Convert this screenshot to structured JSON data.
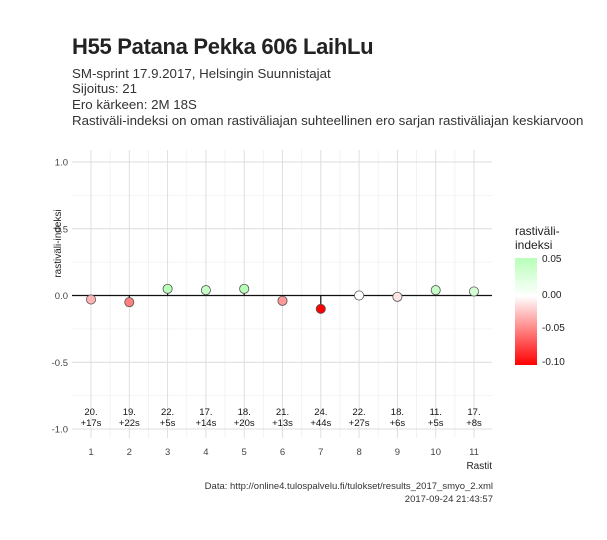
{
  "title": "H55 Patana Pekka 606 LaihLu",
  "subtitle_lines": [
    "SM-sprint 17.9.2017, Helsingin Suunnistajat",
    "Sijoitus: 21",
    "Ero kärkeen: 2M 18S",
    "Rastiväli-indeksi on oman rastiväliajan suhteellinen ero sarjan rastiväliajan keskiarvoon"
  ],
  "caption_lines": [
    "Data: http://online4.tulospalvelu.fi/tulokset/results_2017_smyo_2.xml",
    "2017-09-24 21:43:57"
  ],
  "legend": {
    "title_lines": [
      "rastiväli-",
      "indeksi"
    ],
    "labels": [
      "0.05",
      "0.00",
      "-0.05",
      "-0.10"
    ]
  },
  "chart_data": {
    "type": "scatter",
    "xlabel": "Rastit",
    "ylabel": "rastiväli-indeksi",
    "ylim": [
      -1.0,
      1.0
    ],
    "yticks": [
      "1.0",
      "0.5",
      "0.0",
      "-0.5",
      "-1.0"
    ],
    "x": [
      "1",
      "2",
      "3",
      "4",
      "5",
      "6",
      "7",
      "8",
      "9",
      "10",
      "11"
    ],
    "values": [
      -0.03,
      -0.05,
      0.05,
      0.04,
      0.05,
      -0.04,
      -0.1,
      0.0,
      -0.01,
      0.04,
      0.03
    ],
    "annotations": [
      [
        "20.",
        "+17s"
      ],
      [
        "19.",
        "+22s"
      ],
      [
        "22.",
        "+5s"
      ],
      [
        "17.",
        "+14s"
      ],
      [
        "18.",
        "+20s"
      ],
      [
        "21.",
        "+13s"
      ],
      [
        "24.",
        "+44s"
      ],
      [
        "22.",
        "+27s"
      ],
      [
        "18.",
        "+6s"
      ],
      [
        "11.",
        "+5s"
      ],
      [
        "17.",
        "+8s"
      ]
    ],
    "color_scale": {
      "high": "#b8ffb8",
      "mid": "#ffffff",
      "low": "#ff0000"
    },
    "grid": true,
    "legend_position": "right"
  }
}
